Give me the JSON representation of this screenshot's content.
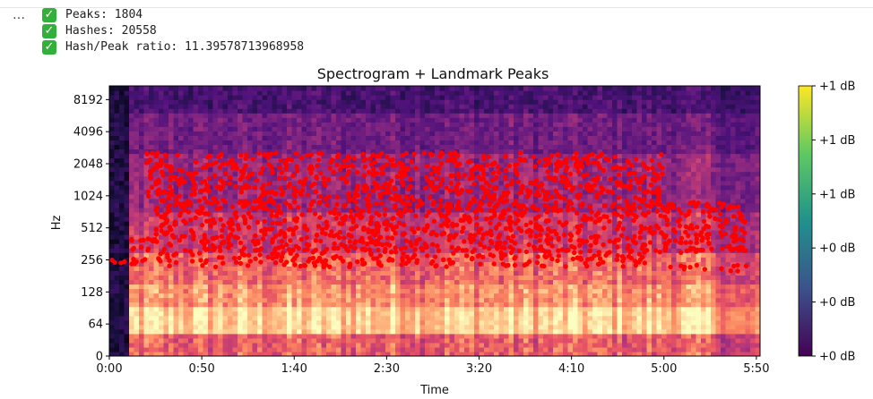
{
  "cell_menu": "…",
  "output_lines": [
    {
      "icon": "check-mark-icon",
      "text": "Peaks: 1804"
    },
    {
      "icon": "check-mark-icon",
      "text": "Hashes: 20558"
    },
    {
      "icon": "check-mark-icon",
      "text": "Hash/Peak ratio: 11.39578713968958"
    }
  ],
  "chart_data": {
    "type": "heatmap",
    "title": "Spectrogram + Landmark Peaks",
    "xlabel": "Time",
    "ylabel": "Hz",
    "x_scale": "time",
    "y_scale": "symlog-base2",
    "xlim_seconds": [
      0,
      352
    ],
    "ylim_hz": [
      0,
      11025
    ],
    "x_ticks": [
      {
        "label": "0:00",
        "seconds": 0
      },
      {
        "label": "0:50",
        "seconds": 50
      },
      {
        "label": "1:40",
        "seconds": 100
      },
      {
        "label": "2:30",
        "seconds": 150
      },
      {
        "label": "3:20",
        "seconds": 200
      },
      {
        "label": "4:10",
        "seconds": 250
      },
      {
        "label": "5:00",
        "seconds": 300
      },
      {
        "label": "5:50",
        "seconds": 350
      }
    ],
    "y_ticks": [
      {
        "label": "0",
        "hz": 0
      },
      {
        "label": "64",
        "hz": 64
      },
      {
        "label": "128",
        "hz": 128
      },
      {
        "label": "256",
        "hz": 256
      },
      {
        "label": "512",
        "hz": 512
      },
      {
        "label": "1024",
        "hz": 1024
      },
      {
        "label": "2048",
        "hz": 2048
      },
      {
        "label": "4096",
        "hz": 4096
      },
      {
        "label": "8192",
        "hz": 8192
      }
    ],
    "colormap": "magma",
    "colorbar": {
      "colormap": "viridis",
      "tick_labels": [
        "+1 dB",
        "+1 dB",
        "+1 dB",
        "+0 dB",
        "+0 dB",
        "+0 dB"
      ]
    },
    "peaks": {
      "color": "#ff0000",
      "count": 1804,
      "bands_hz": [
        {
          "hz_min": 230,
          "hz_max": 265,
          "t_start": 0,
          "t_end": 20
        },
        {
          "hz_min": 300,
          "hz_max": 420,
          "t_start": 10,
          "t_end": 345
        },
        {
          "hz_min": 220,
          "hz_max": 300,
          "t_start": 25,
          "t_end": 290
        },
        {
          "hz_min": 420,
          "hz_max": 900,
          "t_start": 25,
          "t_end": 345
        },
        {
          "hz_min": 900,
          "hz_max": 2600,
          "t_start": 20,
          "t_end": 300
        },
        {
          "hz_min": 200,
          "hz_max": 230,
          "t_start": 295,
          "t_end": 345
        }
      ]
    }
  }
}
